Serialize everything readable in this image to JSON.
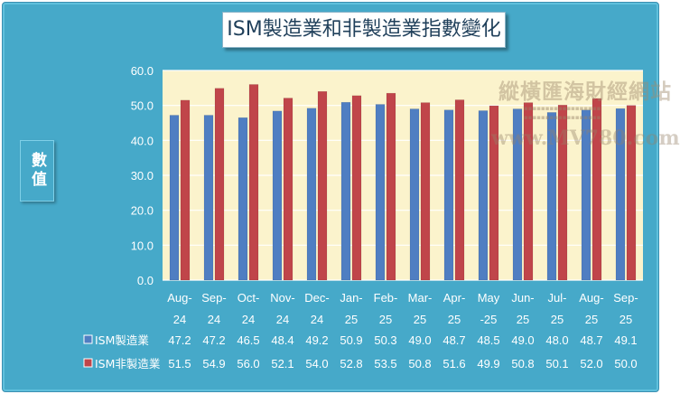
{
  "title": "ISM製造業和非製造業指數變化",
  "y_axis_label": "數值",
  "watermark": {
    "logo_text": "縱橫匯海財經網站",
    "url": "www.MV780.com"
  },
  "chart_data": {
    "type": "bar",
    "title": "ISM製造業和非製造業指數變化",
    "ylabel": "數值",
    "ylim": [
      0,
      60
    ],
    "yticks": [
      "0.0",
      "10.0",
      "20.0",
      "30.0",
      "40.0",
      "50.0",
      "60.0"
    ],
    "grid": true,
    "legend": "table-below",
    "categories": [
      [
        "Aug-",
        "24"
      ],
      [
        "Sep-",
        "24"
      ],
      [
        "Oct-",
        "24"
      ],
      [
        "Nov-",
        "24"
      ],
      [
        "Dec-",
        "24"
      ],
      [
        "Jan-",
        "25"
      ],
      [
        "Feb-",
        "25"
      ],
      [
        "Mar-",
        "25"
      ],
      [
        "Apr-",
        "25"
      ],
      [
        "May",
        "-25"
      ],
      [
        "Jun-",
        "25"
      ],
      [
        "Jul-",
        "25"
      ],
      [
        "Aug-",
        "25"
      ],
      [
        "Sep-",
        "25"
      ]
    ],
    "series": [
      {
        "name": "ISM製造業",
        "color": "#4f7ec2",
        "values": [
          47.2,
          47.2,
          46.5,
          48.4,
          49.2,
          50.9,
          50.3,
          49.0,
          48.7,
          48.5,
          49.0,
          48.0,
          48.7,
          49.1
        ]
      },
      {
        "name": "ISM非製造業",
        "color": "#c0454a",
        "values": [
          51.5,
          54.9,
          56.0,
          52.1,
          54.0,
          52.8,
          53.5,
          50.8,
          51.6,
          49.9,
          50.8,
          50.1,
          52.0,
          50.0
        ]
      }
    ]
  }
}
